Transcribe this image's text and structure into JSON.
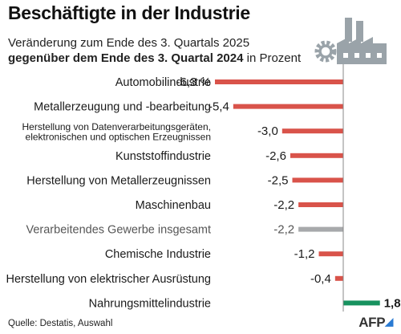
{
  "title": "Beschäftigte in der Industrie",
  "subtitle": {
    "line1": "Veränderung zum Ende des 3. Quartals 2025",
    "line2_bold": "gegenüber dem Ende des 3. Quartal 2024",
    "line2_rest": " in Prozent"
  },
  "source": "Quelle: Destatis, Auswahl",
  "agency": "AFP",
  "colors": {
    "negative": "#d9534a",
    "aggregate": "#a7a9ab",
    "positive": "#17925f",
    "axis": "#888888",
    "icon": "#9aa3a9"
  },
  "icons": [
    "factory-icon",
    "gear-icon"
  ],
  "chart_data": {
    "type": "bar",
    "orientation": "horizontal",
    "unit": "%",
    "categories": [
      "Automobilindustrie",
      "Metallerzeugung und -bearbeitung",
      "Herstellung von Datenverarbeitungsgeräten, elektronischen und optischen Erzeugnissen",
      "Kunststoffindustrie",
      "Herstellung von Metallerzeugnissen",
      "Maschinenbau",
      "Verarbeitendes Gewerbe insgesamt",
      "Chemische Industrie",
      "Herstellung von elektrischer Ausrüstung",
      "Nahrungsmittelindustrie"
    ],
    "category_lines": [
      [
        "Automobilindustrie"
      ],
      [
        "Metallerzeugung und -bearbeitung"
      ],
      [
        "Herstellung von Datenverarbeitungsgeräten,",
        "elektronischen und optischen Erzeugnissen"
      ],
      [
        "Kunststoffindustrie"
      ],
      [
        "Herstellung von Metallerzeugnissen"
      ],
      [
        "Maschinenbau"
      ],
      [
        "Verarbeitendes Gewerbe insgesamt"
      ],
      [
        "Chemische Industrie"
      ],
      [
        "Herstellung von elektrischer Ausrüstung"
      ],
      [
        "Nahrungsmittelindustrie"
      ]
    ],
    "values": [
      -6.3,
      -5.4,
      -3.0,
      -2.6,
      -2.5,
      -2.2,
      -2.2,
      -1.2,
      -0.4,
      1.8
    ],
    "value_labels": [
      "-6,3 %",
      "-5,4",
      "-3,0",
      "-2,6",
      "-2,5",
      "-2,2",
      "-2,2",
      "-1,2",
      "-0,4",
      "1,8"
    ],
    "highlight": "Verarbeitendes Gewerbe insgesamt",
    "xlim": [
      -6.3,
      1.8
    ],
    "grid": false,
    "legend": "none"
  }
}
